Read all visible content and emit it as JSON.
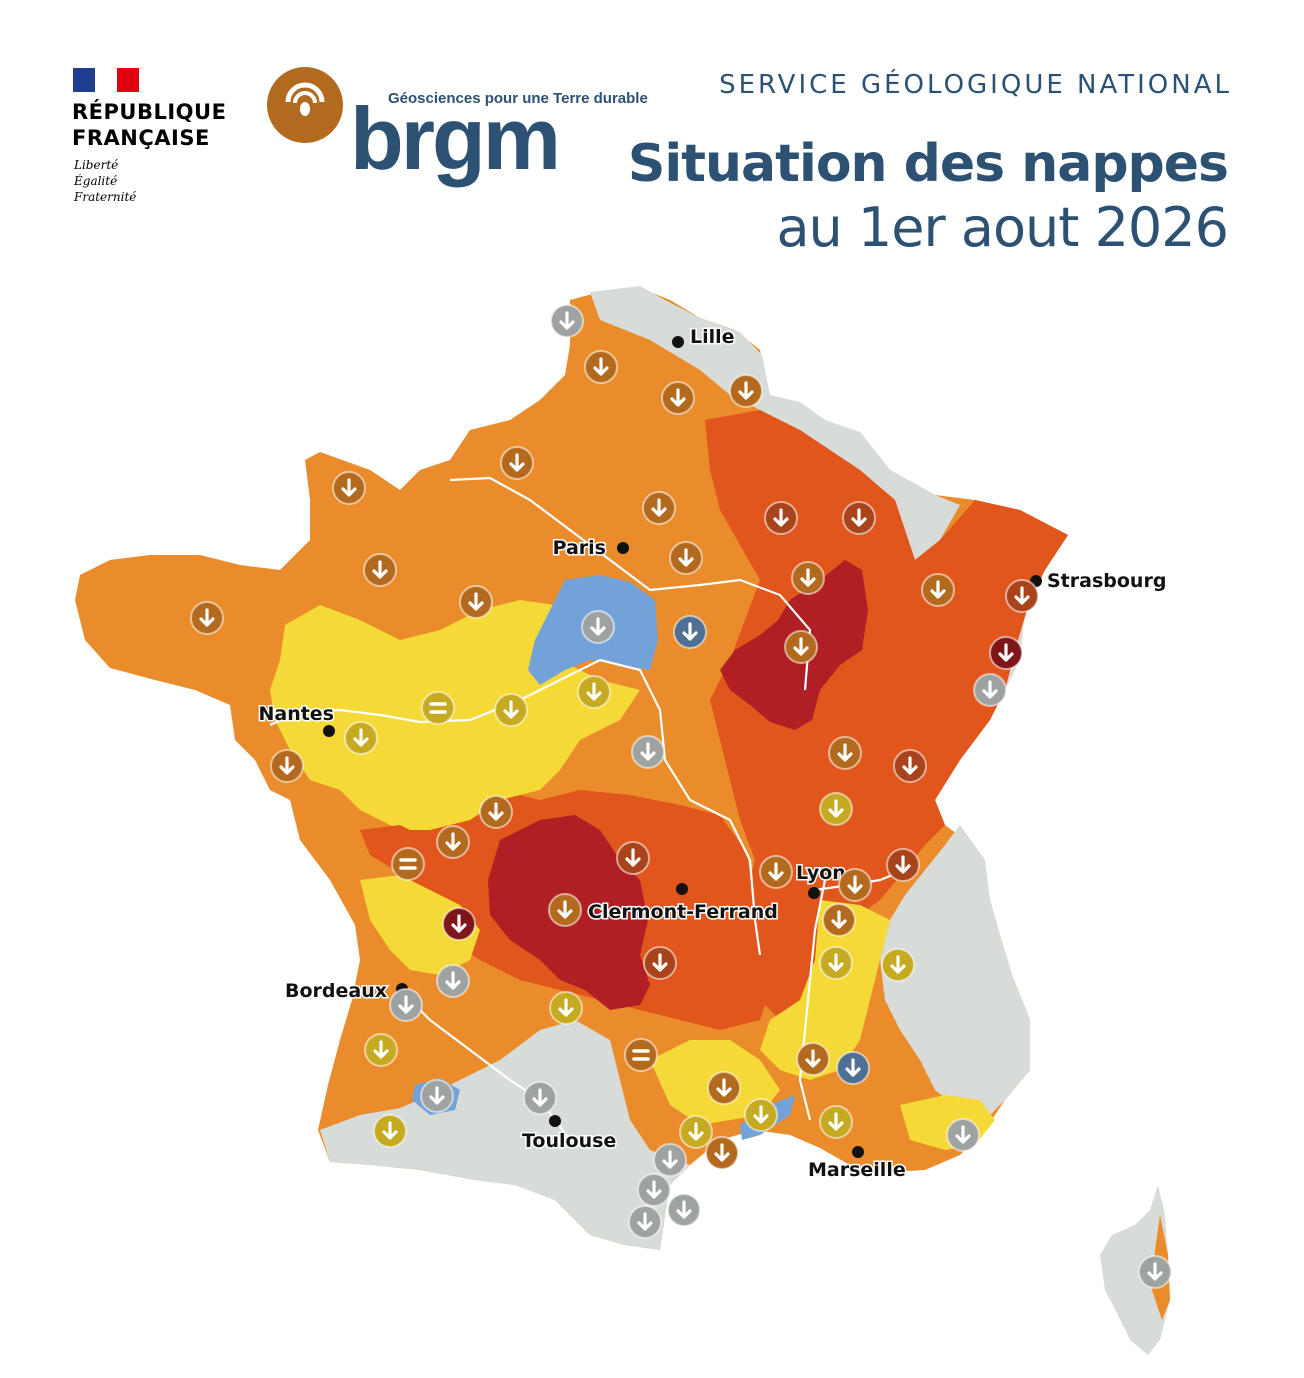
{
  "header": {
    "republique_line1": "RÉPUBLIQUE",
    "republique_line2": "FRANÇAISE",
    "motto": [
      "Liberté",
      "Égalité",
      "Fraternité"
    ],
    "brgm_tagline": "Géosciences pour une Terre durable",
    "brgm_name": "brgm",
    "service": "SERVICE GÉOLOGIQUE NATIONAL",
    "title": "Situation des nappes",
    "subtitle": "au 1er aout 2026"
  },
  "colors": {
    "brand_blue": "#2c5173",
    "brgm_brown": "#b26a1f",
    "level_very_low": "#b01f24",
    "level_low": "#e1561d",
    "level_moderately_low": "#ea8c2b",
    "level_near_normal": "#f5d936",
    "level_above_normal": "#72a2d8",
    "no_data": "#d7dcd9",
    "flag_blue": "#1e3f8f",
    "flag_red": "#e1000f"
  },
  "cities": [
    {
      "name": "Lille"
    },
    {
      "name": "Paris"
    },
    {
      "name": "Strasbourg"
    },
    {
      "name": "Nantes"
    },
    {
      "name": "Lyon"
    },
    {
      "name": "Clermont-Ferrand"
    },
    {
      "name": "Bordeaux"
    },
    {
      "name": "Toulouse"
    },
    {
      "name": "Marseille"
    }
  ],
  "trend_markers": [
    {
      "trend": "down",
      "zone": "grey"
    },
    {
      "trend": "down",
      "zone": "orange"
    },
    {
      "trend": "down",
      "zone": "orange"
    },
    {
      "trend": "down",
      "zone": "orange"
    },
    {
      "trend": "down",
      "zone": "orange"
    },
    {
      "trend": "down",
      "zone": "orange"
    },
    {
      "trend": "down",
      "zone": "orange"
    },
    {
      "trend": "down",
      "zone": "red"
    },
    {
      "trend": "down",
      "zone": "red"
    },
    {
      "trend": "down",
      "zone": "orange"
    },
    {
      "trend": "down",
      "zone": "orange"
    },
    {
      "trend": "down",
      "zone": "orange"
    },
    {
      "trend": "down",
      "zone": "orange"
    },
    {
      "trend": "down",
      "zone": "orange"
    },
    {
      "trend": "down",
      "zone": "orange"
    },
    {
      "trend": "down",
      "zone": "red"
    },
    {
      "trend": "down",
      "zone": "grey"
    },
    {
      "trend": "down",
      "zone": "blue"
    },
    {
      "trend": "down",
      "zone": "orange"
    },
    {
      "trend": "down",
      "zone": "darkred"
    },
    {
      "trend": "down",
      "zone": "grey"
    },
    {
      "trend": "stable",
      "zone": "yellow"
    },
    {
      "trend": "down",
      "zone": "yellow"
    },
    {
      "trend": "down",
      "zone": "yellow"
    },
    {
      "trend": "down",
      "zone": "yellow"
    },
    {
      "trend": "down",
      "zone": "orange"
    },
    {
      "trend": "down",
      "zone": "grey"
    },
    {
      "trend": "down",
      "zone": "orange"
    },
    {
      "trend": "down",
      "zone": "red"
    },
    {
      "trend": "down",
      "zone": "orange"
    },
    {
      "trend": "down",
      "zone": "orange"
    },
    {
      "trend": "down",
      "zone": "yellow"
    },
    {
      "trend": "stable",
      "zone": "orange"
    },
    {
      "trend": "down",
      "zone": "red"
    },
    {
      "trend": "down",
      "zone": "orange"
    },
    {
      "trend": "down",
      "zone": "orange"
    },
    {
      "trend": "down",
      "zone": "red"
    },
    {
      "trend": "down",
      "zone": "orange"
    },
    {
      "trend": "down",
      "zone": "darkred"
    },
    {
      "trend": "down",
      "zone": "orange"
    },
    {
      "trend": "down",
      "zone": "red"
    },
    {
      "trend": "down",
      "zone": "yellow"
    },
    {
      "trend": "down",
      "zone": "yellow"
    },
    {
      "trend": "down",
      "zone": "grey"
    },
    {
      "trend": "down",
      "zone": "grey"
    },
    {
      "trend": "down",
      "zone": "yellow"
    },
    {
      "trend": "down",
      "zone": "yellow"
    },
    {
      "trend": "stable",
      "zone": "orange"
    },
    {
      "trend": "down",
      "zone": "orange"
    },
    {
      "trend": "down",
      "zone": "orange"
    },
    {
      "trend": "down",
      "zone": "blue"
    },
    {
      "trend": "down",
      "zone": "grey"
    },
    {
      "trend": "down",
      "zone": "grey"
    },
    {
      "trend": "down",
      "zone": "yellow"
    },
    {
      "trend": "down",
      "zone": "yellow"
    },
    {
      "trend": "down",
      "zone": "yellow"
    },
    {
      "trend": "down",
      "zone": "yellow"
    },
    {
      "trend": "down",
      "zone": "orange"
    },
    {
      "trend": "down",
      "zone": "grey"
    },
    {
      "trend": "down",
      "zone": "grey"
    },
    {
      "trend": "down",
      "zone": "grey"
    },
    {
      "trend": "down",
      "zone": "grey"
    },
    {
      "trend": "down",
      "zone": "grey"
    },
    {
      "trend": "down",
      "zone": "grey"
    },
    {
      "trend": "down",
      "zone": "grey"
    },
    {
      "trend": "down",
      "zone": "grey"
    }
  ]
}
